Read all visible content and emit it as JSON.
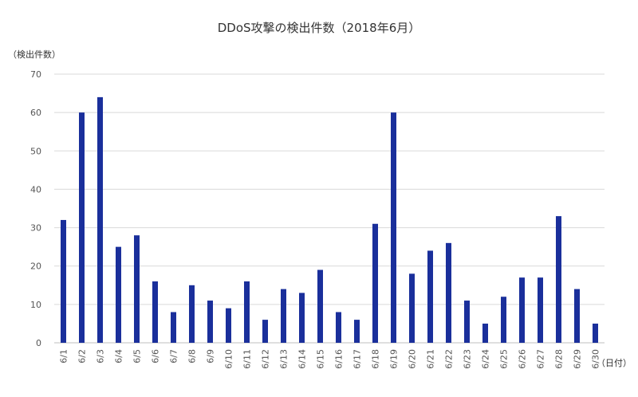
{
  "chart_data": {
    "type": "bar",
    "title": "DDoS攻撃の検出件数（2018年6月）",
    "ylabel": "（検出件数）",
    "xlabel": "（日付）",
    "ylim": [
      0,
      70
    ],
    "yticks": [
      0,
      10,
      20,
      30,
      40,
      50,
      60,
      70
    ],
    "grid": true,
    "bar_color": "#1a2f9b",
    "categories": [
      "6/1",
      "6/2",
      "6/3",
      "6/4",
      "6/5",
      "6/6",
      "6/7",
      "6/8",
      "6/9",
      "6/10",
      "6/11",
      "6/12",
      "6/13",
      "6/14",
      "6/15",
      "6/16",
      "6/17",
      "6/18",
      "6/19",
      "6/20",
      "6/21",
      "6/22",
      "6/23",
      "6/24",
      "6/25",
      "6/26",
      "6/27",
      "6/28",
      "6/29",
      "6/30"
    ],
    "values": [
      32,
      60,
      64,
      25,
      28,
      16,
      8,
      15,
      11,
      9,
      16,
      6,
      14,
      13,
      19,
      8,
      6,
      31,
      60,
      18,
      24,
      26,
      11,
      5,
      12,
      17,
      17,
      33,
      14,
      5
    ]
  }
}
